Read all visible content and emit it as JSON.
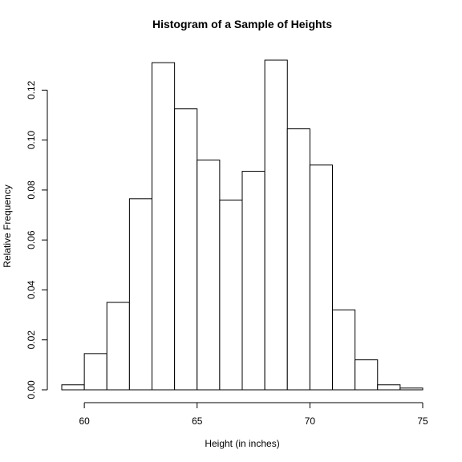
{
  "chart_data": {
    "type": "bar",
    "title": "Histogram of a Sample of Heights",
    "xlabel": "Height (in inches)",
    "ylabel": "Relative Frequency",
    "xlim": [
      59,
      75
    ],
    "ylim": [
      0,
      0.132
    ],
    "x_ticks": [
      60,
      65,
      70,
      75
    ],
    "y_ticks": [
      0.0,
      0.02,
      0.04,
      0.06,
      0.08,
      0.1,
      0.12
    ],
    "y_tick_labels": [
      "0.00",
      "0.02",
      "0.04",
      "0.06",
      "0.08",
      "0.10",
      "0.12"
    ],
    "bin_edges": [
      59,
      60,
      61,
      62,
      63,
      64,
      65,
      66,
      67,
      68,
      69,
      70,
      71,
      72,
      73,
      74,
      75
    ],
    "values": [
      0.002,
      0.0145,
      0.035,
      0.0765,
      0.131,
      0.1125,
      0.092,
      0.076,
      0.0875,
      0.132,
      0.1045,
      0.09,
      0.032,
      0.012,
      0.002,
      0.0007
    ],
    "grid": false,
    "bar_fill": "#ffffff",
    "bar_stroke": "#000000"
  }
}
